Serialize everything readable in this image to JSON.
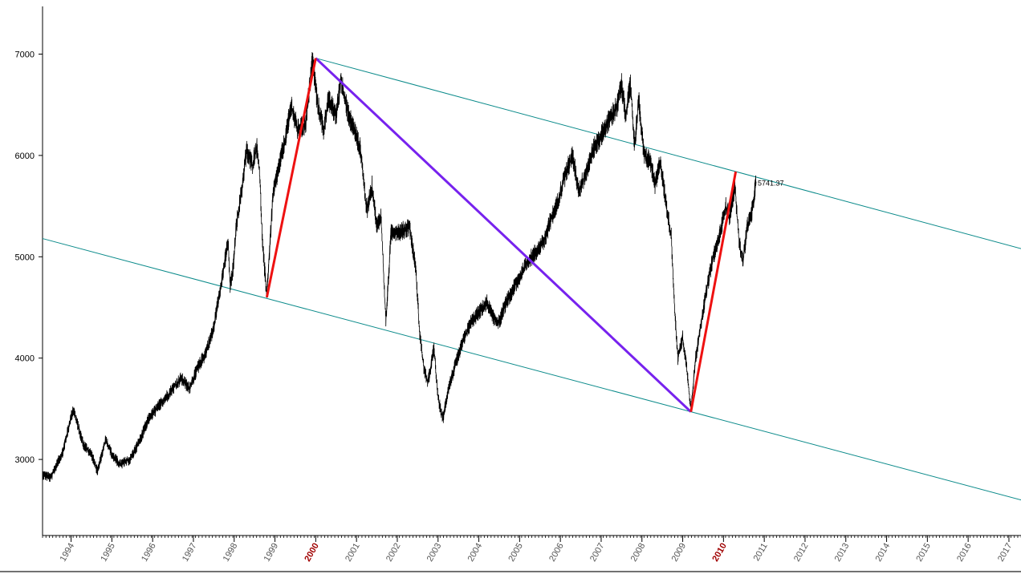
{
  "chart_data": {
    "type": "line",
    "title": "",
    "xlabel": "",
    "ylabel": "",
    "xlim": [
      1993.3,
      2017.3
    ],
    "ylim": [
      2270,
      7500
    ],
    "y_ticks": [
      3000,
      4000,
      5000,
      6000,
      7000
    ],
    "x_ticks": [
      {
        "year": 1994,
        "label": "1994",
        "highlight": false
      },
      {
        "year": 1995,
        "label": "1995",
        "highlight": false
      },
      {
        "year": 1996,
        "label": "1996",
        "highlight": false
      },
      {
        "year": 1997,
        "label": "1997",
        "highlight": false
      },
      {
        "year": 1998,
        "label": "1998",
        "highlight": false
      },
      {
        "year": 1999,
        "label": "1999",
        "highlight": false
      },
      {
        "year": 2000,
        "label": "2000",
        "highlight": true
      },
      {
        "year": 2001,
        "label": "2001",
        "highlight": false
      },
      {
        "year": 2002,
        "label": "2002",
        "highlight": false
      },
      {
        "year": 2003,
        "label": "2003",
        "highlight": false
      },
      {
        "year": 2004,
        "label": "2004",
        "highlight": false
      },
      {
        "year": 2005,
        "label": "2005",
        "highlight": false
      },
      {
        "year": 2006,
        "label": "2006",
        "highlight": false
      },
      {
        "year": 2007,
        "label": "2007",
        "highlight": false
      },
      {
        "year": 2008,
        "label": "2008",
        "highlight": false
      },
      {
        "year": 2009,
        "label": "2009",
        "highlight": false
      },
      {
        "year": 2010,
        "label": "2010",
        "highlight": true
      },
      {
        "year": 2011,
        "label": "2011",
        "highlight": false
      },
      {
        "year": 2012,
        "label": "2012",
        "highlight": false
      },
      {
        "year": 2013,
        "label": "2013",
        "highlight": false
      },
      {
        "year": 2014,
        "label": "2014",
        "highlight": false
      },
      {
        "year": 2015,
        "label": "2015",
        "highlight": false
      },
      {
        "year": 2016,
        "label": "2016",
        "highlight": false
      },
      {
        "year": 2017,
        "label": "2017",
        "highlight": false
      }
    ],
    "series": [
      {
        "color": "#000000",
        "points": [
          [
            1993.3,
            2850
          ],
          [
            1993.5,
            2820
          ],
          [
            1993.8,
            3080
          ],
          [
            1994.05,
            3500
          ],
          [
            1994.3,
            3150
          ],
          [
            1994.5,
            3050
          ],
          [
            1994.65,
            2880
          ],
          [
            1994.85,
            3200
          ],
          [
            1995.0,
            3050
          ],
          [
            1995.2,
            2950
          ],
          [
            1995.45,
            3000
          ],
          [
            1995.7,
            3200
          ],
          [
            1995.9,
            3400
          ],
          [
            1996.1,
            3500
          ],
          [
            1996.4,
            3650
          ],
          [
            1996.7,
            3800
          ],
          [
            1996.9,
            3700
          ],
          [
            1997.1,
            3900
          ],
          [
            1997.3,
            4050
          ],
          [
            1997.5,
            4300
          ],
          [
            1997.6,
            4550
          ],
          [
            1997.75,
            4900
          ],
          [
            1997.85,
            5150
          ],
          [
            1997.9,
            4700
          ],
          [
            1997.98,
            4900
          ],
          [
            1998.05,
            5300
          ],
          [
            1998.2,
            5700
          ],
          [
            1998.3,
            6050
          ],
          [
            1998.45,
            5900
          ],
          [
            1998.55,
            6100
          ],
          [
            1998.62,
            5850
          ],
          [
            1998.7,
            5100
          ],
          [
            1998.8,
            4620
          ],
          [
            1998.95,
            5600
          ],
          [
            1999.1,
            5900
          ],
          [
            1999.25,
            6150
          ],
          [
            1999.4,
            6500
          ],
          [
            1999.55,
            6250
          ],
          [
            1999.75,
            6300
          ],
          [
            1999.92,
            6950
          ],
          [
            2000.05,
            6500
          ],
          [
            2000.2,
            6250
          ],
          [
            2000.3,
            6550
          ],
          [
            2000.5,
            6400
          ],
          [
            2000.62,
            6750
          ],
          [
            2000.8,
            6400
          ],
          [
            2000.95,
            6250
          ],
          [
            2001.1,
            6050
          ],
          [
            2001.25,
            5450
          ],
          [
            2001.38,
            5700
          ],
          [
            2001.5,
            5300
          ],
          [
            2001.6,
            5400
          ],
          [
            2001.72,
            4350
          ],
          [
            2001.85,
            5250
          ],
          [
            2002.1,
            5250
          ],
          [
            2002.3,
            5300
          ],
          [
            2002.45,
            4900
          ],
          [
            2002.55,
            4250
          ],
          [
            2002.65,
            3900
          ],
          [
            2002.75,
            3750
          ],
          [
            2002.9,
            4100
          ],
          [
            2003.0,
            3600
          ],
          [
            2003.12,
            3400
          ],
          [
            2003.25,
            3700
          ],
          [
            2003.4,
            3900
          ],
          [
            2003.6,
            4150
          ],
          [
            2003.8,
            4350
          ],
          [
            2004.0,
            4450
          ],
          [
            2004.2,
            4550
          ],
          [
            2004.35,
            4400
          ],
          [
            2004.5,
            4350
          ],
          [
            2004.62,
            4500
          ],
          [
            2004.8,
            4650
          ],
          [
            2005.0,
            4800
          ],
          [
            2005.2,
            4950
          ],
          [
            2005.4,
            5050
          ],
          [
            2005.6,
            5150
          ],
          [
            2005.75,
            5350
          ],
          [
            2005.9,
            5500
          ],
          [
            2006.15,
            5850
          ],
          [
            2006.3,
            6000
          ],
          [
            2006.45,
            5650
          ],
          [
            2006.6,
            5800
          ],
          [
            2006.8,
            6050
          ],
          [
            2007.0,
            6200
          ],
          [
            2007.2,
            6350
          ],
          [
            2007.4,
            6500
          ],
          [
            2007.5,
            6700
          ],
          [
            2007.6,
            6400
          ],
          [
            2007.72,
            6700
          ],
          [
            2007.82,
            6100
          ],
          [
            2007.92,
            6550
          ],
          [
            2008.05,
            6000
          ],
          [
            2008.2,
            5950
          ],
          [
            2008.32,
            5700
          ],
          [
            2008.45,
            5950
          ],
          [
            2008.6,
            5500
          ],
          [
            2008.72,
            5200
          ],
          [
            2008.8,
            4500
          ],
          [
            2008.88,
            4000
          ],
          [
            2009.0,
            4200
          ],
          [
            2009.1,
            3900
          ],
          [
            2009.2,
            3500
          ],
          [
            2009.32,
            4000
          ],
          [
            2009.45,
            4350
          ],
          [
            2009.6,
            4700
          ],
          [
            2009.75,
            5000
          ],
          [
            2009.9,
            5200
          ],
          [
            2010.05,
            5500
          ],
          [
            2010.15,
            5400
          ],
          [
            2010.28,
            5700
          ],
          [
            2010.38,
            5150
          ],
          [
            2010.48,
            4950
          ],
          [
            2010.58,
            5300
          ],
          [
            2010.68,
            5400
          ],
          [
            2010.8,
            5741.37
          ]
        ]
      }
    ],
    "annotations": {
      "last_value_label": "5741.37",
      "channel_color": "#0a8a8a",
      "rally_color": "#ee1111",
      "decline_color": "#7722ee",
      "upper_channel": [
        [
          2000.0,
          6960
        ],
        [
          2017.3,
          5080
        ]
      ],
      "lower_channel": [
        [
          1993.3,
          5180
        ],
        [
          2017.3,
          2600
        ]
      ],
      "rally_lines": [
        [
          [
            1998.8,
            4600
          ],
          [
            2000.0,
            6960
          ]
        ],
        [
          [
            2009.2,
            3470
          ],
          [
            2010.3,
            5840
          ]
        ]
      ],
      "decline_line": [
        [
          2000.0,
          6960
        ],
        [
          2009.2,
          3470
        ]
      ]
    }
  }
}
